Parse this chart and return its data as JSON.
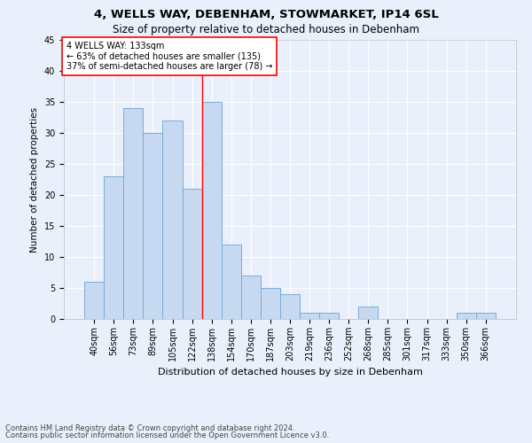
{
  "title1": "4, WELLS WAY, DEBENHAM, STOWMARKET, IP14 6SL",
  "title2": "Size of property relative to detached houses in Debenham",
  "xlabel": "Distribution of detached houses by size in Debenham",
  "ylabel": "Number of detached properties",
  "categories": [
    "40sqm",
    "56sqm",
    "73sqm",
    "89sqm",
    "105sqm",
    "122sqm",
    "138sqm",
    "154sqm",
    "170sqm",
    "187sqm",
    "203sqm",
    "219sqm",
    "236sqm",
    "252sqm",
    "268sqm",
    "285sqm",
    "301sqm",
    "317sqm",
    "333sqm",
    "350sqm",
    "366sqm"
  ],
  "values": [
    6,
    23,
    34,
    30,
    32,
    21,
    35,
    12,
    7,
    5,
    4,
    1,
    1,
    0,
    2,
    0,
    0,
    0,
    0,
    1,
    1
  ],
  "bar_color": "#c6d9f0",
  "bar_edge_color": "#7aacd6",
  "red_line_x": 5.5,
  "annotation_text": "4 WELLS WAY: 133sqm\n← 63% of detached houses are smaller (135)\n37% of semi-detached houses are larger (78) →",
  "annotation_box_color": "white",
  "annotation_box_edge": "red",
  "ylim": [
    0,
    45
  ],
  "yticks": [
    0,
    5,
    10,
    15,
    20,
    25,
    30,
    35,
    40,
    45
  ],
  "footer1": "Contains HM Land Registry data © Crown copyright and database right 2024.",
  "footer2": "Contains public sector information licensed under the Open Government Licence v3.0.",
  "bg_color": "#eaf0fb",
  "grid_color": "white",
  "title1_fontsize": 9.5,
  "title2_fontsize": 8.5,
  "xlabel_fontsize": 8,
  "ylabel_fontsize": 7.5,
  "tick_fontsize": 7,
  "annotation_fontsize": 7,
  "footer_fontsize": 6
}
